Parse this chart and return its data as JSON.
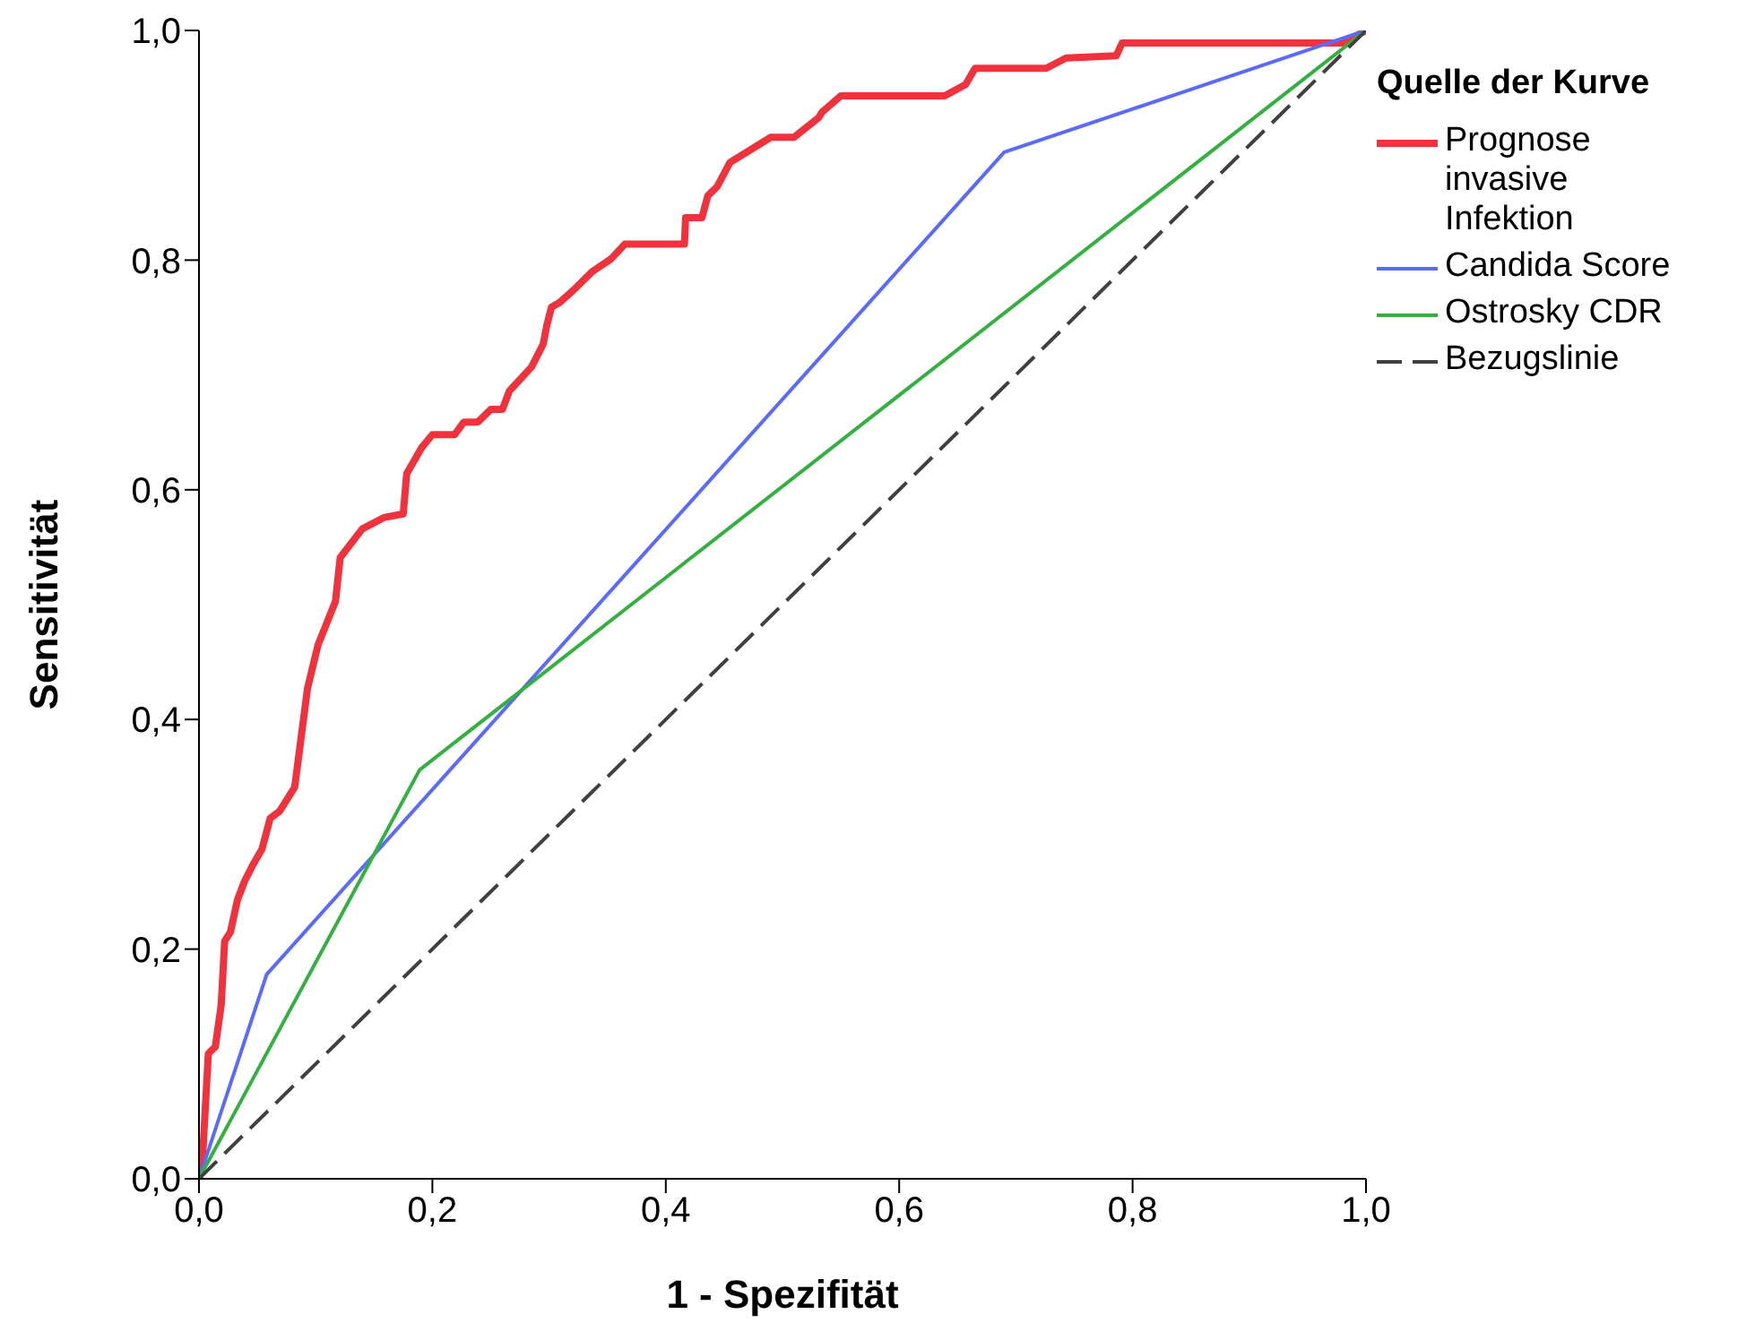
{
  "chart_data": {
    "type": "line",
    "xlabel": "1 - Spezifität",
    "ylabel": "Sensitivität",
    "legend_title": "Quelle der Kurve",
    "legend": "top right",
    "marker": "none",
    "xlim": [
      0,
      1
    ],
    "ylim": [
      0,
      1
    ],
    "xticks": [
      {
        "value": 0,
        "label": "0,0"
      },
      {
        "value": 0.2,
        "label": "0,2"
      },
      {
        "value": 0.4,
        "label": "0,4"
      },
      {
        "value": 0.6,
        "label": "0,6"
      },
      {
        "value": 0.8,
        "label": "0,8"
      },
      {
        "value": 1,
        "label": "1,0"
      }
    ],
    "yticks": [
      {
        "value": 0,
        "label": "0,0"
      },
      {
        "value": 0.2,
        "label": "0,2"
      },
      {
        "value": 0.4,
        "label": "0,4"
      },
      {
        "value": 0.6,
        "label": "0,6"
      },
      {
        "value": 0.8,
        "label": "0,8"
      },
      {
        "value": 1,
        "label": "1,0"
      }
    ],
    "series": [
      {
        "name": "Prognose invasive Infektion",
        "color": "#f0323c",
        "line_style": "solid",
        "x": [
          0,
          0.003,
          0.008,
          0.014,
          0.019,
          0.022,
          0.027,
          0.033,
          0.039,
          0.046,
          0.054,
          0.061,
          0.069,
          0.082,
          0.093,
          0.102,
          0.117,
          0.121,
          0.14,
          0.159,
          0.175,
          0.178,
          0.191,
          0.2,
          0.219,
          0.227,
          0.239,
          0.25,
          0.26,
          0.266,
          0.285,
          0.295,
          0.298,
          0.302,
          0.309,
          0.321,
          0.337,
          0.353,
          0.365,
          0.416,
          0.417,
          0.431,
          0.436,
          0.444,
          0.455,
          0.49,
          0.51,
          0.531,
          0.534,
          0.55,
          0.639,
          0.657,
          0.665,
          0.726,
          0.743,
          0.786,
          0.791,
          0.98,
          1
        ],
        "values": [
          0,
          0.017,
          0.109,
          0.115,
          0.151,
          0.207,
          0.215,
          0.243,
          0.259,
          0.273,
          0.287,
          0.314,
          0.32,
          0.341,
          0.427,
          0.465,
          0.503,
          0.541,
          0.566,
          0.576,
          0.579,
          0.614,
          0.637,
          0.648,
          0.648,
          0.659,
          0.659,
          0.67,
          0.67,
          0.686,
          0.707,
          0.727,
          0.743,
          0.759,
          0.763,
          0.774,
          0.79,
          0.801,
          0.814,
          0.814,
          0.837,
          0.837,
          0.856,
          0.864,
          0.885,
          0.907,
          0.907,
          0.924,
          0.929,
          0.943,
          0.943,
          0.953,
          0.967,
          0.967,
          0.976,
          0.978,
          0.989,
          0.989,
          1
        ]
      },
      {
        "name": "Candida Score",
        "color": "#5a6aff",
        "line_style": "solid",
        "x": [
          0,
          0.058,
          0.69,
          1
        ],
        "values": [
          0,
          0.178,
          0.894,
          1
        ]
      },
      {
        "name": "Ostrosky CDR",
        "color": "#33b040",
        "line_style": "solid",
        "x": [
          0,
          0.189,
          1
        ],
        "values": [
          0,
          0.356,
          1
        ]
      },
      {
        "name": "Bezugslinie",
        "color": "#404040",
        "line_style": "dashed",
        "x": [
          0,
          1
        ],
        "values": [
          0,
          1
        ]
      }
    ]
  }
}
